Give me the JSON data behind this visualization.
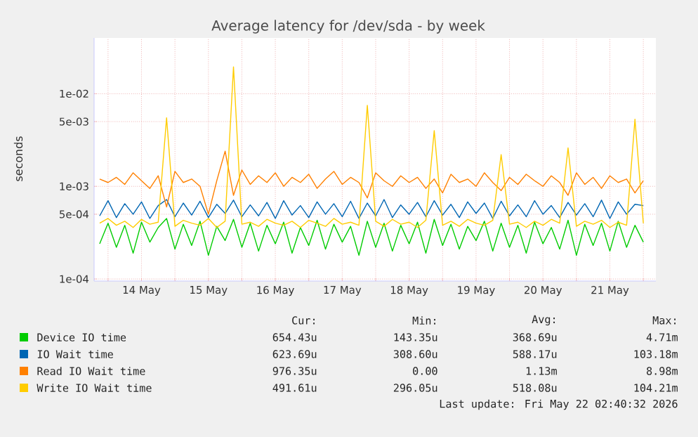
{
  "chart_data": {
    "type": "line",
    "title": "Average latency for /dev/sda - by week",
    "ylabel": "seconds",
    "x": [
      "2026-05-13T21:00",
      "2026-05-14T00:00",
      "2026-05-14T03:00",
      "2026-05-14T06:00",
      "2026-05-14T09:00",
      "2026-05-14T12:00",
      "2026-05-14T15:00",
      "2026-05-14T18:00",
      "2026-05-14T21:00",
      "2026-05-15T00:00",
      "2026-05-15T03:00",
      "2026-05-15T06:00",
      "2026-05-15T09:00",
      "2026-05-15T12:00",
      "2026-05-15T15:00",
      "2026-05-15T18:00",
      "2026-05-15T21:00",
      "2026-05-16T00:00",
      "2026-05-16T03:00",
      "2026-05-16T06:00",
      "2026-05-16T09:00",
      "2026-05-16T12:00",
      "2026-05-16T15:00",
      "2026-05-16T18:00",
      "2026-05-16T21:00",
      "2026-05-17T00:00",
      "2026-05-17T03:00",
      "2026-05-17T06:00",
      "2026-05-17T09:00",
      "2026-05-17T12:00",
      "2026-05-17T15:00",
      "2026-05-17T18:00",
      "2026-05-17T21:00",
      "2026-05-18T00:00",
      "2026-05-18T03:00",
      "2026-05-18T06:00",
      "2026-05-18T09:00",
      "2026-05-18T12:00",
      "2026-05-18T15:00",
      "2026-05-18T18:00",
      "2026-05-18T21:00",
      "2026-05-19T00:00",
      "2026-05-19T03:00",
      "2026-05-19T06:00",
      "2026-05-19T09:00",
      "2026-05-19T12:00",
      "2026-05-19T15:00",
      "2026-05-19T18:00",
      "2026-05-19T21:00",
      "2026-05-20T00:00",
      "2026-05-20T03:00",
      "2026-05-20T06:00",
      "2026-05-20T09:00",
      "2026-05-20T12:00",
      "2026-05-20T15:00",
      "2026-05-20T18:00",
      "2026-05-20T21:00",
      "2026-05-21T00:00",
      "2026-05-21T03:00",
      "2026-05-21T06:00",
      "2026-05-21T09:00",
      "2026-05-21T12:00",
      "2026-05-21T15:00",
      "2026-05-21T18:00",
      "2026-05-21T21:00",
      "2026-05-22T00:00"
    ],
    "series": [
      {
        "name": "Device IO time",
        "color": "#00cc00",
        "values": [
          0.00024,
          0.0004,
          0.00022,
          0.00038,
          0.00019,
          0.00041,
          0.00025,
          0.00036,
          0.00045,
          0.00021,
          0.00039,
          0.00023,
          0.00042,
          0.00018,
          0.00037,
          0.00026,
          0.00044,
          0.00022,
          0.0004,
          0.0002,
          0.00038,
          0.00024,
          0.00041,
          0.00019,
          0.00036,
          0.00023,
          0.00043,
          0.00021,
          0.00039,
          0.00025,
          0.00037,
          0.00018,
          0.00042,
          0.00022,
          0.0004,
          0.0002,
          0.00038,
          0.00024,
          0.00041,
          0.00019,
          0.00044,
          0.00023,
          0.00039,
          0.00021,
          0.00037,
          0.00026,
          0.00042,
          0.0002,
          0.0004,
          0.00022,
          0.00038,
          0.00019,
          0.00041,
          0.00024,
          0.00036,
          0.00021,
          0.00043,
          0.00018,
          0.00039,
          0.00023,
          0.0004,
          0.0002,
          0.00042,
          0.00022,
          0.00038,
          0.00025
        ]
      },
      {
        "name": "IO Wait time",
        "color": "#0066b3",
        "values": [
          0.00048,
          0.0007,
          0.00046,
          0.00065,
          0.0005,
          0.00068,
          0.00045,
          0.00062,
          0.00072,
          0.00047,
          0.00066,
          0.00049,
          0.00069,
          0.00046,
          0.00064,
          0.00051,
          0.00071,
          0.00047,
          0.00063,
          0.00048,
          0.00067,
          0.00045,
          0.0007,
          0.00049,
          0.00062,
          0.00046,
          0.00068,
          0.0005,
          0.00065,
          0.00047,
          0.00069,
          0.00045,
          0.00066,
          0.00048,
          0.00072,
          0.00046,
          0.00063,
          0.0005,
          0.00067,
          0.00047,
          0.0007,
          0.00049,
          0.00064,
          0.00046,
          0.00068,
          0.00051,
          0.00066,
          0.00045,
          0.00069,
          0.00048,
          0.00063,
          0.00047,
          0.0007,
          0.0005,
          0.00062,
          0.00046,
          0.00067,
          0.00049,
          0.00065,
          0.00047,
          0.00071,
          0.00045,
          0.00068,
          0.0005,
          0.00064,
          0.00062
        ]
      },
      {
        "name": "Read IO Wait time",
        "color": "#ff8000",
        "values": [
          0.0012,
          0.0011,
          0.00125,
          0.00105,
          0.0014,
          0.00115,
          0.00095,
          0.0013,
          0.0006,
          0.00145,
          0.0011,
          0.0012,
          0.001,
          0.0005,
          0.00115,
          0.0024,
          0.0008,
          0.0015,
          0.00105,
          0.0013,
          0.0011,
          0.0014,
          0.001,
          0.00125,
          0.0011,
          0.00135,
          0.00095,
          0.0012,
          0.00145,
          0.00105,
          0.00125,
          0.0011,
          0.00075,
          0.0014,
          0.00115,
          0.001,
          0.0013,
          0.0011,
          0.00125,
          0.00095,
          0.0012,
          0.00085,
          0.00135,
          0.0011,
          0.0012,
          0.001,
          0.0014,
          0.0011,
          0.0009,
          0.00125,
          0.00105,
          0.00135,
          0.00115,
          0.001,
          0.0013,
          0.0011,
          0.0008,
          0.0014,
          0.00105,
          0.00125,
          0.00095,
          0.0013,
          0.0011,
          0.0012,
          0.00085,
          0.00115
        ]
      },
      {
        "name": "Write IO Wait time",
        "color": "#ffcc00",
        "values": [
          0.0004,
          0.00045,
          0.00038,
          0.00042,
          0.00036,
          0.00044,
          0.00039,
          0.00041,
          0.0055,
          0.00037,
          0.00043,
          0.0004,
          0.00038,
          0.00045,
          0.00036,
          0.00042,
          0.0195,
          0.00039,
          0.00041,
          0.00037,
          0.00044,
          0.0004,
          0.00038,
          0.00042,
          0.00036,
          0.00043,
          0.0004,
          0.00037,
          0.00045,
          0.00039,
          0.00041,
          0.00038,
          0.0075,
          0.00042,
          0.00037,
          0.00044,
          0.00039,
          0.00041,
          0.00036,
          0.00043,
          0.004,
          0.00038,
          0.00042,
          0.00037,
          0.00044,
          0.0004,
          0.00038,
          0.00043,
          0.0022,
          0.00039,
          0.00041,
          0.00036,
          0.00042,
          0.00038,
          0.00044,
          0.0004,
          0.0026,
          0.00037,
          0.00042,
          0.00039,
          0.00043,
          0.00036,
          0.00041,
          0.00038,
          0.0053,
          0.0004
        ]
      }
    ],
    "xlim": [
      "2026-05-13T19:00",
      "2026-05-22T04:30"
    ],
    "xticks": [
      {
        "value": "2026-05-14T00:00",
        "label": null
      },
      {
        "value": "2026-05-15T00:00",
        "label": null
      },
      {
        "value": "2026-05-16T00:00",
        "label": null
      },
      {
        "value": "2026-05-17T00:00",
        "label": null
      },
      {
        "value": "2026-05-18T00:00",
        "label": null
      },
      {
        "value": "2026-05-19T00:00",
        "label": null
      },
      {
        "value": "2026-05-20T00:00",
        "label": null
      },
      {
        "value": "2026-05-21T00:00",
        "label": null
      },
      {
        "value": "2026-05-22T00:00",
        "label": null
      },
      {
        "value": "2026-05-14T12:00",
        "label": "14 May"
      },
      {
        "value": "2026-05-15T12:00",
        "label": "15 May"
      },
      {
        "value": "2026-05-16T12:00",
        "label": "16 May"
      },
      {
        "value": "2026-05-17T12:00",
        "label": "17 May"
      },
      {
        "value": "2026-05-18T12:00",
        "label": "18 May"
      },
      {
        "value": "2026-05-19T12:00",
        "label": "19 May"
      },
      {
        "value": "2026-05-20T12:00",
        "label": "20 May"
      },
      {
        "value": "2026-05-21T12:00",
        "label": "21 May"
      }
    ],
    "ylim": [
      9.5e-05,
      0.04
    ],
    "yticks": [
      {
        "value": 0.0001,
        "label": "1e-04"
      },
      {
        "value": 0.0005,
        "label": "5e-04"
      },
      {
        "value": 0.001,
        "label": "1e-03"
      },
      {
        "value": 0.005,
        "label": "5e-03"
      },
      {
        "value": 0.01,
        "label": "1e-02"
      }
    ],
    "log": "y",
    "grid": true,
    "legend": "bottom",
    "annotations": [
      "Cur:",
      "Min:",
      "Avg:",
      "Max:",
      "654.43u",
      "143.35u",
      "368.69u",
      "4.71m",
      "623.69u",
      "308.60u",
      "588.17u",
      "103.18m",
      "976.35u",
      "0.00",
      "1.13m",
      "8.98m",
      "491.61u",
      "296.05u",
      "518.08u",
      "104.21m",
      "Last update: Fri May 22 02:40:32 2026"
    ]
  }
}
